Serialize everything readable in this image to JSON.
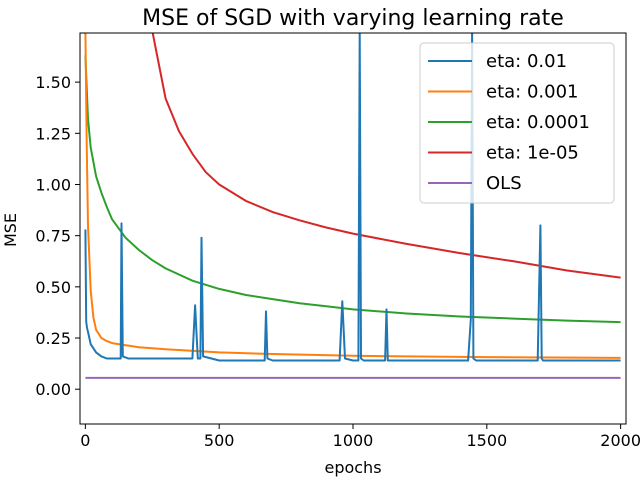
{
  "chart_data": {
    "type": "line",
    "title": "MSE of SGD with varying learning rate",
    "xlabel": "epochs",
    "ylabel": "MSE",
    "xlim": [
      -20,
      2020
    ],
    "ylim": [
      -0.17,
      1.74
    ],
    "x_ticks": [
      0,
      500,
      1000,
      1500,
      2000
    ],
    "x_tick_labels": [
      "0",
      "500",
      "1000",
      "1500",
      "2000"
    ],
    "y_ticks": [
      0.0,
      0.25,
      0.5,
      0.75,
      1.0,
      1.25,
      1.5
    ],
    "y_tick_labels": [
      "0.00",
      "0.25",
      "0.50",
      "0.75",
      "1.00",
      "1.25",
      "1.50"
    ],
    "grid": false,
    "legend_position": "top-right",
    "series": [
      {
        "name": "eta: 0.01",
        "color": "#1f77b4",
        "x": [
          0,
          3,
          6,
          10,
          20,
          40,
          60,
          80,
          100,
          120,
          132,
          135,
          140,
          160,
          200,
          300,
          400,
          410,
          420,
          430,
          434,
          440,
          500,
          600,
          670,
          675,
          680,
          700,
          800,
          900,
          950,
          960,
          970,
          1000,
          1020,
          1025,
          1030,
          1040,
          1100,
          1120,
          1125,
          1130,
          1200,
          1300,
          1400,
          1430,
          1440,
          1445,
          1450,
          1460,
          1500,
          1600,
          1690,
          1700,
          1705,
          1710,
          1800,
          1900,
          2000
        ],
        "y": [
          0.78,
          0.33,
          0.3,
          0.28,
          0.22,
          0.18,
          0.16,
          0.15,
          0.15,
          0.15,
          0.15,
          0.81,
          0.16,
          0.15,
          0.15,
          0.15,
          0.15,
          0.41,
          0.15,
          0.15,
          0.74,
          0.16,
          0.14,
          0.14,
          0.14,
          0.38,
          0.15,
          0.14,
          0.14,
          0.14,
          0.14,
          0.43,
          0.15,
          0.14,
          0.14,
          1.75,
          0.15,
          0.14,
          0.14,
          0.14,
          0.39,
          0.14,
          0.14,
          0.14,
          0.14,
          0.14,
          0.34,
          1.75,
          0.15,
          0.14,
          0.14,
          0.14,
          0.14,
          0.8,
          0.15,
          0.14,
          0.14,
          0.14,
          0.14
        ]
      },
      {
        "name": "eta: 0.001",
        "color": "#ff7f0e",
        "x": [
          0,
          5,
          10,
          20,
          30,
          40,
          60,
          80,
          100,
          150,
          200,
          300,
          500,
          700,
          1000,
          1500,
          2000
        ],
        "y": [
          1.75,
          1.2,
          0.8,
          0.48,
          0.35,
          0.29,
          0.25,
          0.235,
          0.225,
          0.215,
          0.205,
          0.195,
          0.18,
          0.172,
          0.163,
          0.157,
          0.153
        ]
      },
      {
        "name": "eta: 0.0001",
        "color": "#2ca02c",
        "x": [
          0,
          10,
          20,
          40,
          60,
          80,
          100,
          150,
          200,
          250,
          300,
          400,
          500,
          600,
          700,
          800,
          900,
          1000,
          1200,
          1400,
          1600,
          1800,
          2000
        ],
        "y": [
          1.63,
          1.32,
          1.18,
          1.04,
          0.96,
          0.89,
          0.83,
          0.74,
          0.68,
          0.63,
          0.59,
          0.53,
          0.49,
          0.46,
          0.44,
          0.42,
          0.405,
          0.39,
          0.37,
          0.355,
          0.345,
          0.335,
          0.328
        ]
      },
      {
        "name": "eta: 1e-05",
        "color": "#d62728",
        "x": [
          250,
          300,
          350,
          400,
          450,
          500,
          600,
          700,
          800,
          900,
          1000,
          1200,
          1400,
          1600,
          1800,
          2000
        ],
        "y": [
          1.75,
          1.42,
          1.26,
          1.15,
          1.06,
          1.0,
          0.92,
          0.865,
          0.825,
          0.79,
          0.76,
          0.71,
          0.665,
          0.625,
          0.58,
          0.545
        ]
      },
      {
        "name": "OLS",
        "color": "#9467bd",
        "x": [
          0,
          2000
        ],
        "y": [
          0.055,
          0.055
        ]
      }
    ]
  }
}
